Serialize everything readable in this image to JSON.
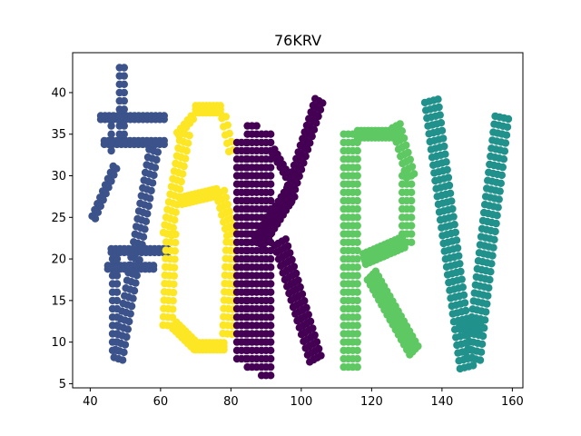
{
  "chart_data": {
    "type": "scatter",
    "title": "76KRV",
    "xlabel": "",
    "ylabel": "",
    "xlim": [
      35,
      163
    ],
    "ylim": [
      4.5,
      44.8
    ],
    "xticks": [
      40,
      60,
      80,
      100,
      120,
      140,
      160
    ],
    "yticks": [
      5,
      10,
      15,
      20,
      25,
      30,
      35,
      40
    ],
    "grid": false,
    "legend": "none",
    "series": [
      {
        "color": "#3b528b",
        "strokes": [
          {
            "from": [
              43,
              37
            ],
            "to": [
              61,
              37
            ],
            "step": 1.2,
            "width": 2
          },
          {
            "from": [
              44,
              34
            ],
            "to": [
              61,
              34
            ],
            "step": 1.2,
            "width": 2
          },
          {
            "from": [
              46,
              37
            ],
            "to": [
              46,
              33
            ],
            "step": 1.0,
            "width": 1
          },
          {
            "from": [
              47,
              31
            ],
            "to": [
              41,
              25
            ],
            "step": 1.0,
            "width": 2
          },
          {
            "from": [
              49,
              34
            ],
            "to": [
              49,
              43
            ],
            "step": 1.0,
            "width": 2
          },
          {
            "from": [
              58,
              33
            ],
            "to": [
              48,
              8
            ],
            "step": 1.0,
            "width": 3
          },
          {
            "from": [
              46,
              21
            ],
            "to": [
              62,
              21
            ],
            "step": 1.2,
            "width": 2
          },
          {
            "from": [
              45,
              19
            ],
            "to": [
              58,
              19
            ],
            "step": 1.2,
            "width": 2
          },
          {
            "from": [
              47,
              20
            ],
            "to": [
              47,
              9
            ],
            "step": 1.0,
            "width": 2
          }
        ]
      },
      {
        "color": "#fde725",
        "strokes": [
          {
            "from": [
              70,
              38
            ],
            "to": [
              77,
              38
            ],
            "step": 1.0,
            "width": 3
          },
          {
            "from": [
              65,
              35
            ],
            "to": [
              69,
              37
            ],
            "step": 1.0,
            "width": 2
          },
          {
            "from": [
              78,
              37
            ],
            "to": [
              80,
              33
            ],
            "step": 1.0,
            "width": 2
          },
          {
            "from": [
              67,
              35
            ],
            "to": [
              62,
              23
            ],
            "step": 1.0,
            "width": 3
          },
          {
            "from": [
              63,
              23
            ],
            "to": [
              62,
              12
            ],
            "step": 1.0,
            "width": 3
          },
          {
            "from": [
              64,
              12
            ],
            "to": [
              70,
              9.5
            ],
            "step": 1.0,
            "width": 3
          },
          {
            "from": [
              70,
              9.5
            ],
            "to": [
              78,
              9.5
            ],
            "step": 1.0,
            "width": 3
          },
          {
            "from": [
              79,
              11
            ],
            "to": [
              80,
              22
            ],
            "step": 1.0,
            "width": 3
          },
          {
            "from": [
              80,
              23
            ],
            "to": [
              77,
              28
            ],
            "step": 1.0,
            "width": 3
          },
          {
            "from": [
              76,
              28
            ],
            "to": [
              66,
              27
            ],
            "step": 1.0,
            "width": 3
          }
        ]
      },
      {
        "color": "#440154",
        "strokes": [
          {
            "from": [
              86,
              36
            ],
            "to": [
              86,
              7
            ],
            "step": 1.0,
            "width": 3
          },
          {
            "from": [
              83,
              34
            ],
            "to": [
              83,
              8
            ],
            "step": 1.0,
            "width": 3
          },
          {
            "from": [
              90,
              35
            ],
            "to": [
              90,
              6
            ],
            "step": 1.0,
            "width": 3
          },
          {
            "from": [
              88,
              22
            ],
            "to": [
              97,
              28
            ],
            "step": 1.0,
            "width": 4
          },
          {
            "from": [
              96,
              27
            ],
            "to": [
              105,
              39
            ],
            "step": 1.0,
            "width": 3
          },
          {
            "from": [
              94,
              22
            ],
            "to": [
              104,
              8
            ],
            "step": 1.0,
            "width": 4
          },
          {
            "from": [
              92,
              33
            ],
            "to": [
              96,
              30
            ],
            "step": 1.0,
            "width": 2
          }
        ]
      },
      {
        "color": "#5ec962",
        "strokes": [
          {
            "from": [
              114,
              35
            ],
            "to": [
              114,
              7
            ],
            "step": 1.0,
            "width": 4
          },
          {
            "from": [
              116,
              35
            ],
            "to": [
              128,
              35
            ],
            "step": 1.0,
            "width": 3
          },
          {
            "from": [
              127,
              36
            ],
            "to": [
              131,
              30
            ],
            "step": 1.0,
            "width": 3
          },
          {
            "from": [
              130,
              30
            ],
            "to": [
              130,
              22
            ],
            "step": 1.0,
            "width": 3
          },
          {
            "from": [
              129,
              22
            ],
            "to": [
              118,
              20
            ],
            "step": 1.0,
            "width": 4
          },
          {
            "from": [
              120,
              18
            ],
            "to": [
              132,
              9
            ],
            "step": 1.0,
            "width": 4
          }
        ]
      },
      {
        "color": "#21918c",
        "strokes": [
          {
            "from": [
              137,
              39
            ],
            "to": [
              147,
              7
            ],
            "step": 1.0,
            "width": 4
          },
          {
            "from": [
              157,
              37
            ],
            "to": [
              149,
              8
            ],
            "step": 1.0,
            "width": 4
          },
          {
            "from": [
              145,
              12
            ],
            "to": [
              151,
              12
            ],
            "step": 1.0,
            "width": 3
          }
        ]
      }
    ]
  }
}
